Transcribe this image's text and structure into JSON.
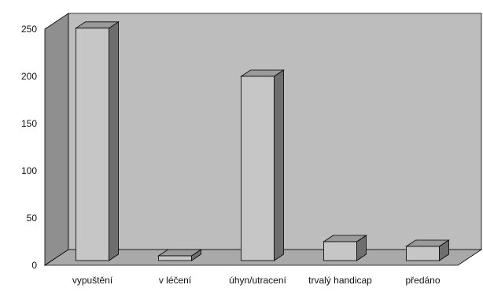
{
  "chart_data": {
    "type": "bar",
    "three_d": true,
    "categories": [
      "vypuštění",
      "v léčení",
      "úhyn/utracení",
      "trvalý handicap",
      "předáno"
    ],
    "category_labels_shown": [
      "vypuštění",
      "v léčení",
      "úhyn/utracení",
      "trvalý handicap",
      "předáno"
    ],
    "values": [
      246,
      5,
      195,
      20,
      15
    ],
    "yticks": [
      0,
      50,
      100,
      150,
      200,
      250
    ],
    "ylim": [
      0,
      250
    ],
    "title": "",
    "xlabel": "",
    "ylabel": "",
    "grid": false,
    "legend": "none",
    "colors": {
      "wall": "#bdbdbd",
      "side_wall": "#8f8f8f",
      "floor": "#a9a9a9",
      "bar_front": "#c6c6c6",
      "bar_top": "#9a9a9a",
      "bar_side": "#6e6e6e",
      "outline": "#000000"
    }
  }
}
